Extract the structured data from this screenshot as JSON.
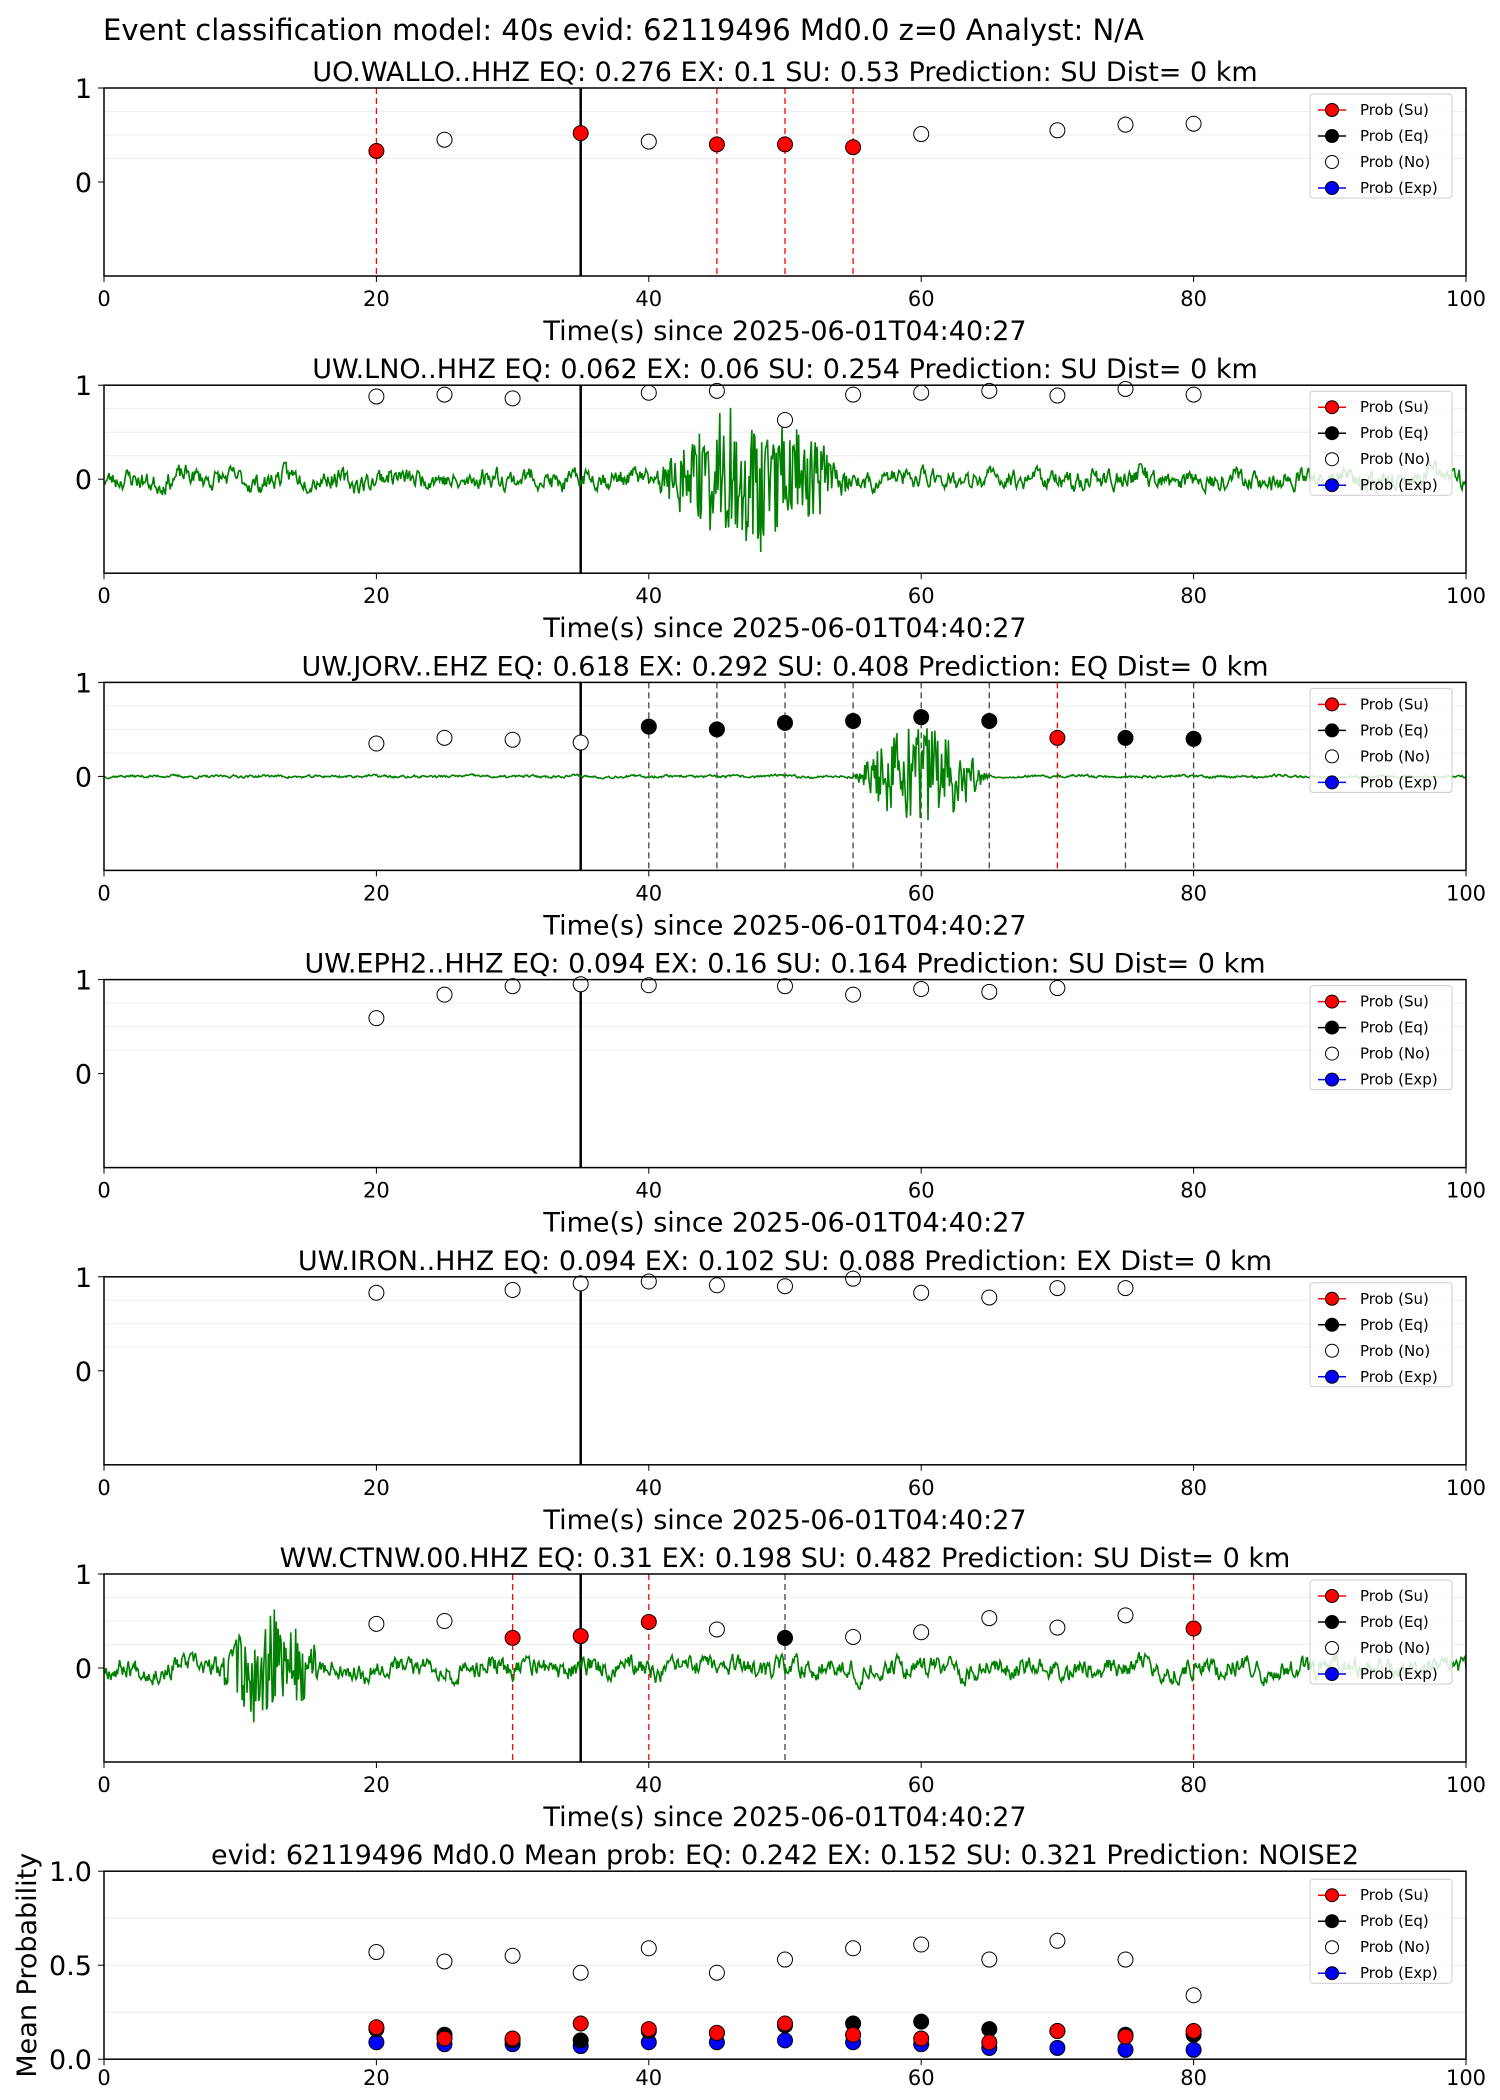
{
  "figure_title": "Event classification model: 40s evid: 62119496 Md0.0 z=0 Analyst: N/A",
  "legend_labels": [
    "Prob (Su)",
    "Prob (Eq)",
    "Prob (No)",
    "Prob (Exp)"
  ],
  "colors": {
    "waveform": "#008000",
    "su": "#ff0000",
    "eq": "#000000",
    "no": "#ffffff",
    "exp": "#0000ff",
    "event_line": "#000000"
  },
  "chart_data": [
    {
      "type": "line",
      "title": "UO.WALLO..HHZ   EQ: 0.276  EX: 0.1  SU: 0.53   Prediction: SU    Dist= 0 km",
      "xlabel": "Time(s) since 2025-06-01T04:40:27",
      "xlim": [
        0,
        100
      ],
      "ylim": [
        -1,
        1
      ],
      "xticks": [
        "0",
        "20",
        "40",
        "60",
        "80",
        "100"
      ],
      "yticks": [
        "1",
        "0"
      ],
      "event_time": 35,
      "waveform": {
        "noise_amp": 0.25,
        "signal_window": [
          0,
          0
        ],
        "signal_amp": 0,
        "seed": 11
      },
      "markers": [
        {
          "x": 20,
          "y": 0.33,
          "class": "su"
        },
        {
          "x": 25,
          "y": 0.45,
          "class": "no"
        },
        {
          "x": 35,
          "y": 0.52,
          "class": "su"
        },
        {
          "x": 40,
          "y": 0.43,
          "class": "no"
        },
        {
          "x": 45,
          "y": 0.4,
          "class": "su"
        },
        {
          "x": 50,
          "y": 0.4,
          "class": "su"
        },
        {
          "x": 55,
          "y": 0.37,
          "class": "su"
        },
        {
          "x": 60,
          "y": 0.51,
          "class": "no"
        },
        {
          "x": 70,
          "y": 0.55,
          "class": "no"
        },
        {
          "x": 75,
          "y": 0.61,
          "class": "no"
        },
        {
          "x": 80,
          "y": 0.62,
          "class": "no"
        }
      ]
    },
    {
      "type": "line",
      "title": "UW.LNO..HHZ   EQ: 0.062  EX: 0.06  SU: 0.254   Prediction: SU    Dist= 0 km",
      "xlabel": "Time(s) since 2025-06-01T04:40:27",
      "xlim": [
        0,
        100
      ],
      "ylim": [
        -1,
        1
      ],
      "xticks": [
        "0",
        "20",
        "40",
        "60",
        "80",
        "100"
      ],
      "yticks": [
        "1",
        "0"
      ],
      "event_time": 35,
      "waveform": {
        "noise_amp": 0.3,
        "signal_window": [
          40,
          55
        ],
        "signal_amp": 0.65,
        "seed": 23
      },
      "markers": [
        {
          "x": 20,
          "y": 0.88,
          "class": "no"
        },
        {
          "x": 25,
          "y": 0.9,
          "class": "no"
        },
        {
          "x": 30,
          "y": 0.86,
          "class": "no"
        },
        {
          "x": 40,
          "y": 0.92,
          "class": "no"
        },
        {
          "x": 45,
          "y": 0.94,
          "class": "no"
        },
        {
          "x": 50,
          "y": 0.63,
          "class": "no"
        },
        {
          "x": 55,
          "y": 0.9,
          "class": "no"
        },
        {
          "x": 60,
          "y": 0.92,
          "class": "no"
        },
        {
          "x": 65,
          "y": 0.94,
          "class": "no"
        },
        {
          "x": 70,
          "y": 0.89,
          "class": "no"
        },
        {
          "x": 75,
          "y": 0.96,
          "class": "no"
        },
        {
          "x": 80,
          "y": 0.9,
          "class": "no"
        }
      ]
    },
    {
      "type": "line",
      "title": "UW.JORV..EHZ   EQ: 0.618  EX: 0.292  SU: 0.408   Prediction: EQ    Dist= 0 km",
      "xlabel": "Time(s) since 2025-06-01T04:40:27",
      "xlim": [
        0,
        100
      ],
      "ylim": [
        -1,
        1
      ],
      "xticks": [
        "0",
        "20",
        "40",
        "60",
        "80",
        "100"
      ],
      "yticks": [
        "1",
        "0"
      ],
      "event_time": 35,
      "waveform": {
        "noise_amp": 0.04,
        "signal_window": [
          55,
          65
        ],
        "signal_amp": 0.55,
        "seed": 37
      },
      "markers": [
        {
          "x": 20,
          "y": 0.35,
          "class": "no"
        },
        {
          "x": 25,
          "y": 0.41,
          "class": "no"
        },
        {
          "x": 30,
          "y": 0.39,
          "class": "no"
        },
        {
          "x": 35,
          "y": 0.36,
          "class": "no"
        },
        {
          "x": 40,
          "y": 0.53,
          "class": "eq"
        },
        {
          "x": 45,
          "y": 0.5,
          "class": "eq"
        },
        {
          "x": 50,
          "y": 0.57,
          "class": "eq"
        },
        {
          "x": 55,
          "y": 0.59,
          "class": "eq"
        },
        {
          "x": 60,
          "y": 0.63,
          "class": "eq"
        },
        {
          "x": 65,
          "y": 0.59,
          "class": "eq"
        },
        {
          "x": 70,
          "y": 0.41,
          "class": "su"
        },
        {
          "x": 75,
          "y": 0.41,
          "class": "eq"
        },
        {
          "x": 80,
          "y": 0.4,
          "class": "eq"
        }
      ]
    },
    {
      "type": "line",
      "title": "UW.EPH2..HHZ   EQ: 0.094  EX: 0.16  SU: 0.164   Prediction: SU    Dist= 0 km",
      "xlabel": "Time(s) since 2025-06-01T04:40:27",
      "xlim": [
        0,
        100
      ],
      "ylim": [
        -1,
        1
      ],
      "xticks": [
        "0",
        "20",
        "40",
        "60",
        "80",
        "100"
      ],
      "yticks": [
        "1",
        "0"
      ],
      "event_time": 35,
      "waveform": {
        "noise_amp": 0.5,
        "signal_window": [
          0,
          0
        ],
        "signal_amp": 0,
        "seed": 41
      },
      "markers": [
        {
          "x": 20,
          "y": 0.59,
          "class": "no"
        },
        {
          "x": 25,
          "y": 0.84,
          "class": "no"
        },
        {
          "x": 30,
          "y": 0.93,
          "class": "no"
        },
        {
          "x": 35,
          "y": 0.95,
          "class": "no"
        },
        {
          "x": 40,
          "y": 0.94,
          "class": "no"
        },
        {
          "x": 50,
          "y": 0.93,
          "class": "no"
        },
        {
          "x": 55,
          "y": 0.84,
          "class": "no"
        },
        {
          "x": 60,
          "y": 0.9,
          "class": "no"
        },
        {
          "x": 65,
          "y": 0.87,
          "class": "no"
        },
        {
          "x": 70,
          "y": 0.91,
          "class": "no"
        }
      ]
    },
    {
      "type": "line",
      "title": "UW.IRON..HHZ   EQ: 0.094  EX: 0.102  SU: 0.088   Prediction: EX    Dist= 0 km",
      "xlabel": "Time(s) since 2025-06-01T04:40:27",
      "xlim": [
        0,
        100
      ],
      "ylim": [
        -1,
        1
      ],
      "xticks": [
        "0",
        "20",
        "40",
        "60",
        "80",
        "100"
      ],
      "yticks": [
        "1",
        "0"
      ],
      "event_time": 35,
      "waveform": {
        "noise_amp": 0.5,
        "signal_window": [
          0,
          0
        ],
        "signal_amp": 0,
        "seed": 53
      },
      "markers": [
        {
          "x": 20,
          "y": 0.83,
          "class": "no"
        },
        {
          "x": 30,
          "y": 0.86,
          "class": "no"
        },
        {
          "x": 35,
          "y": 0.93,
          "class": "no"
        },
        {
          "x": 40,
          "y": 0.95,
          "class": "no"
        },
        {
          "x": 45,
          "y": 0.91,
          "class": "no"
        },
        {
          "x": 50,
          "y": 0.9,
          "class": "no"
        },
        {
          "x": 55,
          "y": 0.98,
          "class": "no"
        },
        {
          "x": 60,
          "y": 0.83,
          "class": "no"
        },
        {
          "x": 65,
          "y": 0.78,
          "class": "no"
        },
        {
          "x": 70,
          "y": 0.88,
          "class": "no"
        },
        {
          "x": 75,
          "y": 0.88,
          "class": "no"
        }
      ]
    },
    {
      "type": "line",
      "title": "WW.CTNW.00.HHZ   EQ: 0.31  EX: 0.198  SU: 0.482   Prediction: SU    Dist= 0 km",
      "xlabel": "Time(s) since 2025-06-01T04:40:27",
      "xlim": [
        0,
        100
      ],
      "ylim": [
        -1,
        1
      ],
      "xticks": [
        "0",
        "20",
        "40",
        "60",
        "80",
        "100"
      ],
      "yticks": [
        "1",
        "0"
      ],
      "event_time": 35,
      "waveform": {
        "noise_amp": 0.3,
        "signal_window": [
          8,
          16
        ],
        "signal_amp": 0.55,
        "seed": 67
      },
      "markers": [
        {
          "x": 20,
          "y": 0.47,
          "class": "no"
        },
        {
          "x": 25,
          "y": 0.5,
          "class": "no"
        },
        {
          "x": 30,
          "y": 0.32,
          "class": "su"
        },
        {
          "x": 35,
          "y": 0.34,
          "class": "su"
        },
        {
          "x": 40,
          "y": 0.49,
          "class": "su"
        },
        {
          "x": 45,
          "y": 0.41,
          "class": "no"
        },
        {
          "x": 50,
          "y": 0.32,
          "class": "eq"
        },
        {
          "x": 55,
          "y": 0.33,
          "class": "no"
        },
        {
          "x": 60,
          "y": 0.38,
          "class": "no"
        },
        {
          "x": 65,
          "y": 0.53,
          "class": "no"
        },
        {
          "x": 70,
          "y": 0.43,
          "class": "no"
        },
        {
          "x": 75,
          "y": 0.56,
          "class": "no"
        },
        {
          "x": 80,
          "y": 0.42,
          "class": "su"
        }
      ]
    },
    {
      "type": "scatter",
      "title": "evid: 62119496  Md0.0    Mean prob:    EQ: 0.242  EX: 0.152  SU: 0.321    Prediction: NOISE2",
      "ylabel": "Mean Probability",
      "xlim": [
        0,
        100
      ],
      "ylim": [
        0,
        1
      ],
      "xticks": [
        "0",
        "20",
        "40",
        "60",
        "80",
        "100"
      ],
      "yticks": [
        {
          "v": 0.0,
          "label": "0.0"
        },
        {
          "v": 0.5,
          "label": "0.5"
        },
        {
          "v": 1.0,
          "label": "1.0"
        }
      ],
      "x": [
        20,
        25,
        30,
        35,
        40,
        45,
        50,
        55,
        60,
        65,
        70,
        75,
        80
      ],
      "series": [
        {
          "class": "no",
          "values": [
            0.57,
            0.52,
            0.55,
            0.46,
            0.59,
            0.46,
            0.53,
            0.59,
            0.61,
            0.53,
            0.63,
            0.53,
            0.34
          ]
        },
        {
          "class": "exp",
          "values": [
            0.09,
            0.08,
            0.08,
            0.07,
            0.09,
            0.09,
            0.1,
            0.09,
            0.08,
            0.06,
            0.06,
            0.05,
            0.05
          ]
        },
        {
          "class": "eq",
          "values": [
            0.16,
            0.13,
            0.1,
            0.1,
            0.15,
            0.14,
            0.18,
            0.19,
            0.2,
            0.16,
            0.15,
            0.13,
            0.13
          ]
        },
        {
          "class": "su",
          "values": [
            0.17,
            0.11,
            0.11,
            0.19,
            0.16,
            0.14,
            0.19,
            0.13,
            0.11,
            0.09,
            0.15,
            0.12,
            0.15
          ]
        }
      ]
    }
  ]
}
